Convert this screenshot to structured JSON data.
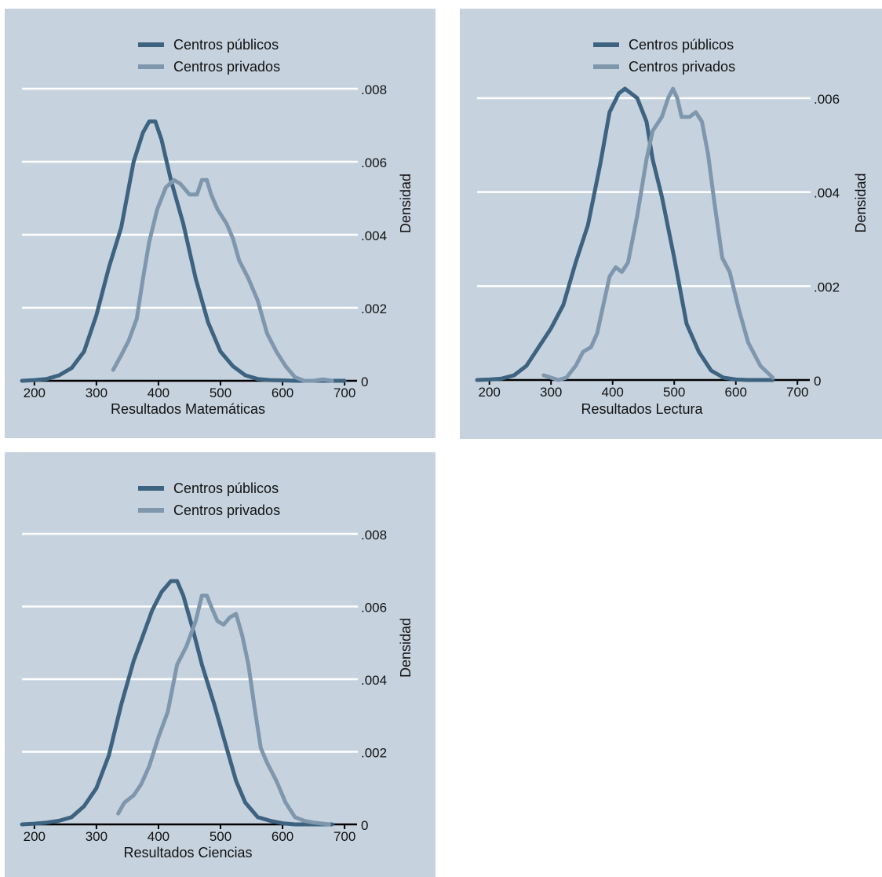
{
  "colors": {
    "public": "#3d6380",
    "private": "#7f97ad",
    "panel_bg": "#c6d3df",
    "grid": "#ffffff",
    "axis": "#000000"
  },
  "chart_data": [
    {
      "type": "line",
      "xlabel": "Resultados Matemáticas",
      "ylabel": "Densidad",
      "xlim": [
        180,
        715
      ],
      "ylim": [
        0,
        0.008
      ],
      "x_ticks": [
        200,
        300,
        400,
        500,
        600,
        700
      ],
      "y_ticks": [
        0,
        0.002,
        0.004,
        0.006,
        0.008
      ],
      "x_tick_labels": [
        "200",
        "300",
        "400",
        "500",
        "600",
        "700"
      ],
      "y_tick_labels": [
        "0",
        ".002",
        ".004",
        ".006",
        ".008"
      ],
      "grid": true,
      "legend_position": "top-center",
      "series": [
        {
          "name": "Centros públicos",
          "color": "#3d6380",
          "x": [
            180,
            200,
            220,
            240,
            260,
            280,
            300,
            320,
            340,
            360,
            375,
            385,
            395,
            405,
            420,
            440,
            460,
            480,
            500,
            520,
            540,
            560,
            580,
            600,
            620,
            640,
            660,
            680,
            700
          ],
          "y": [
            0,
            2e-05,
            5e-05,
            0.00015,
            0.00035,
            0.0008,
            0.0018,
            0.0031,
            0.0042,
            0.006,
            0.0068,
            0.0071,
            0.0071,
            0.0066,
            0.0055,
            0.0043,
            0.0028,
            0.0016,
            0.0008,
            0.0004,
            0.00015,
            5e-05,
            2e-05,
            1e-05,
            0,
            0,
            0,
            0,
            0
          ]
        },
        {
          "name": "Centros privados",
          "color": "#7f97ad",
          "x": [
            327,
            340,
            352,
            365,
            375,
            385,
            398,
            412,
            425,
            435,
            450,
            462,
            470,
            478,
            485,
            495,
            510,
            520,
            530,
            545,
            560,
            575,
            590,
            605,
            620,
            635,
            650,
            665,
            680
          ],
          "y": [
            0.0003,
            0.0007,
            0.0011,
            0.0017,
            0.0028,
            0.0038,
            0.0047,
            0.0053,
            0.0055,
            0.0054,
            0.0051,
            0.0051,
            0.0055,
            0.0055,
            0.0051,
            0.0047,
            0.0043,
            0.0039,
            0.0033,
            0.0028,
            0.0022,
            0.0013,
            0.0008,
            0.0004,
            0.0001,
            0,
            0,
            4e-05,
            0
          ]
        }
      ]
    },
    {
      "type": "line",
      "xlabel": "Resultados Lectura",
      "ylabel": "Densidad",
      "xlim": [
        180,
        715
      ],
      "ylim": [
        0,
        0.0062
      ],
      "x_ticks": [
        200,
        300,
        400,
        500,
        600,
        700
      ],
      "y_ticks": [
        0,
        0.002,
        0.004,
        0.006
      ],
      "x_tick_labels": [
        "200",
        "300",
        "400",
        "500",
        "600",
        "700"
      ],
      "y_tick_labels": [
        "0",
        ".002",
        ".004",
        ".006"
      ],
      "grid": true,
      "legend_position": "top-center",
      "series": [
        {
          "name": "Centros públicos",
          "color": "#3d6380",
          "x": [
            180,
            200,
            220,
            240,
            260,
            280,
            300,
            320,
            340,
            360,
            380,
            395,
            410,
            420,
            430,
            440,
            455,
            465,
            480,
            500,
            520,
            540,
            560,
            580,
            600,
            620,
            640,
            660
          ],
          "y": [
            0,
            1e-05,
            3e-05,
            0.0001,
            0.0003,
            0.0007,
            0.0011,
            0.0016,
            0.0025,
            0.0033,
            0.0046,
            0.0057,
            0.0061,
            0.0062,
            0.0061,
            0.006,
            0.0055,
            0.0047,
            0.0039,
            0.0026,
            0.0012,
            0.0006,
            0.0002,
            5e-05,
            1e-05,
            0,
            0,
            0
          ]
        },
        {
          "name": "Centros privados",
          "color": "#7f97ad",
          "x": [
            288,
            300,
            312,
            325,
            340,
            352,
            365,
            375,
            385,
            395,
            405,
            415,
            425,
            440,
            455,
            465,
            480,
            490,
            498,
            505,
            512,
            525,
            535,
            545,
            555,
            565,
            578,
            590,
            605,
            620,
            640,
            660
          ],
          "y": [
            0.0001,
            5e-05,
            0,
            5e-05,
            0.0003,
            0.0006,
            0.0007,
            0.001,
            0.0016,
            0.0022,
            0.0024,
            0.0023,
            0.0025,
            0.0035,
            0.0047,
            0.0053,
            0.0056,
            0.006,
            0.0062,
            0.006,
            0.0056,
            0.0056,
            0.0057,
            0.0055,
            0.0048,
            0.0038,
            0.0026,
            0.0023,
            0.0015,
            0.0008,
            0.0003,
            5e-05
          ]
        }
      ]
    },
    {
      "type": "line",
      "xlabel": "Resultados Ciencias",
      "ylabel": "Densidad",
      "xlim": [
        180,
        715
      ],
      "ylim": [
        0,
        0.008
      ],
      "x_ticks": [
        200,
        300,
        400,
        500,
        600,
        700
      ],
      "y_ticks": [
        0,
        0.002,
        0.004,
        0.006,
        0.008
      ],
      "x_tick_labels": [
        "200",
        "300",
        "400",
        "500",
        "600",
        "700"
      ],
      "y_tick_labels": [
        "0",
        ".002",
        ".004",
        ".006",
        ".008"
      ],
      "grid": true,
      "legend_position": "top-center",
      "series": [
        {
          "name": "Centros públicos",
          "color": "#3d6380",
          "x": [
            180,
            200,
            220,
            240,
            260,
            280,
            300,
            320,
            340,
            360,
            375,
            390,
            405,
            420,
            430,
            440,
            455,
            470,
            490,
            510,
            525,
            540,
            560,
            580,
            600,
            620,
            640,
            660,
            680
          ],
          "y": [
            0,
            2e-05,
            5e-05,
            0.0001,
            0.0002,
            0.0005,
            0.001,
            0.0019,
            0.0033,
            0.0045,
            0.0052,
            0.0059,
            0.0064,
            0.0067,
            0.0067,
            0.0063,
            0.0054,
            0.0044,
            0.0033,
            0.0021,
            0.0012,
            0.0006,
            0.0002,
            0.0001,
            3e-05,
            0,
            0,
            0,
            0
          ]
        },
        {
          "name": "Centros privados",
          "color": "#7f97ad",
          "x": [
            335,
            345,
            360,
            372,
            385,
            400,
            415,
            430,
            445,
            460,
            470,
            478,
            485,
            495,
            505,
            515,
            525,
            535,
            545,
            555,
            565,
            575,
            590,
            605,
            620,
            635,
            650,
            665,
            675
          ],
          "y": [
            0.0003,
            0.0006,
            0.0008,
            0.0011,
            0.0016,
            0.0024,
            0.0031,
            0.0044,
            0.0049,
            0.0056,
            0.0063,
            0.0063,
            0.006,
            0.0056,
            0.0055,
            0.0057,
            0.0058,
            0.0052,
            0.0044,
            0.0032,
            0.0021,
            0.0017,
            0.0012,
            0.0006,
            0.0002,
            0.0001,
            5e-05,
            2e-05,
            0
          ]
        }
      ]
    }
  ]
}
